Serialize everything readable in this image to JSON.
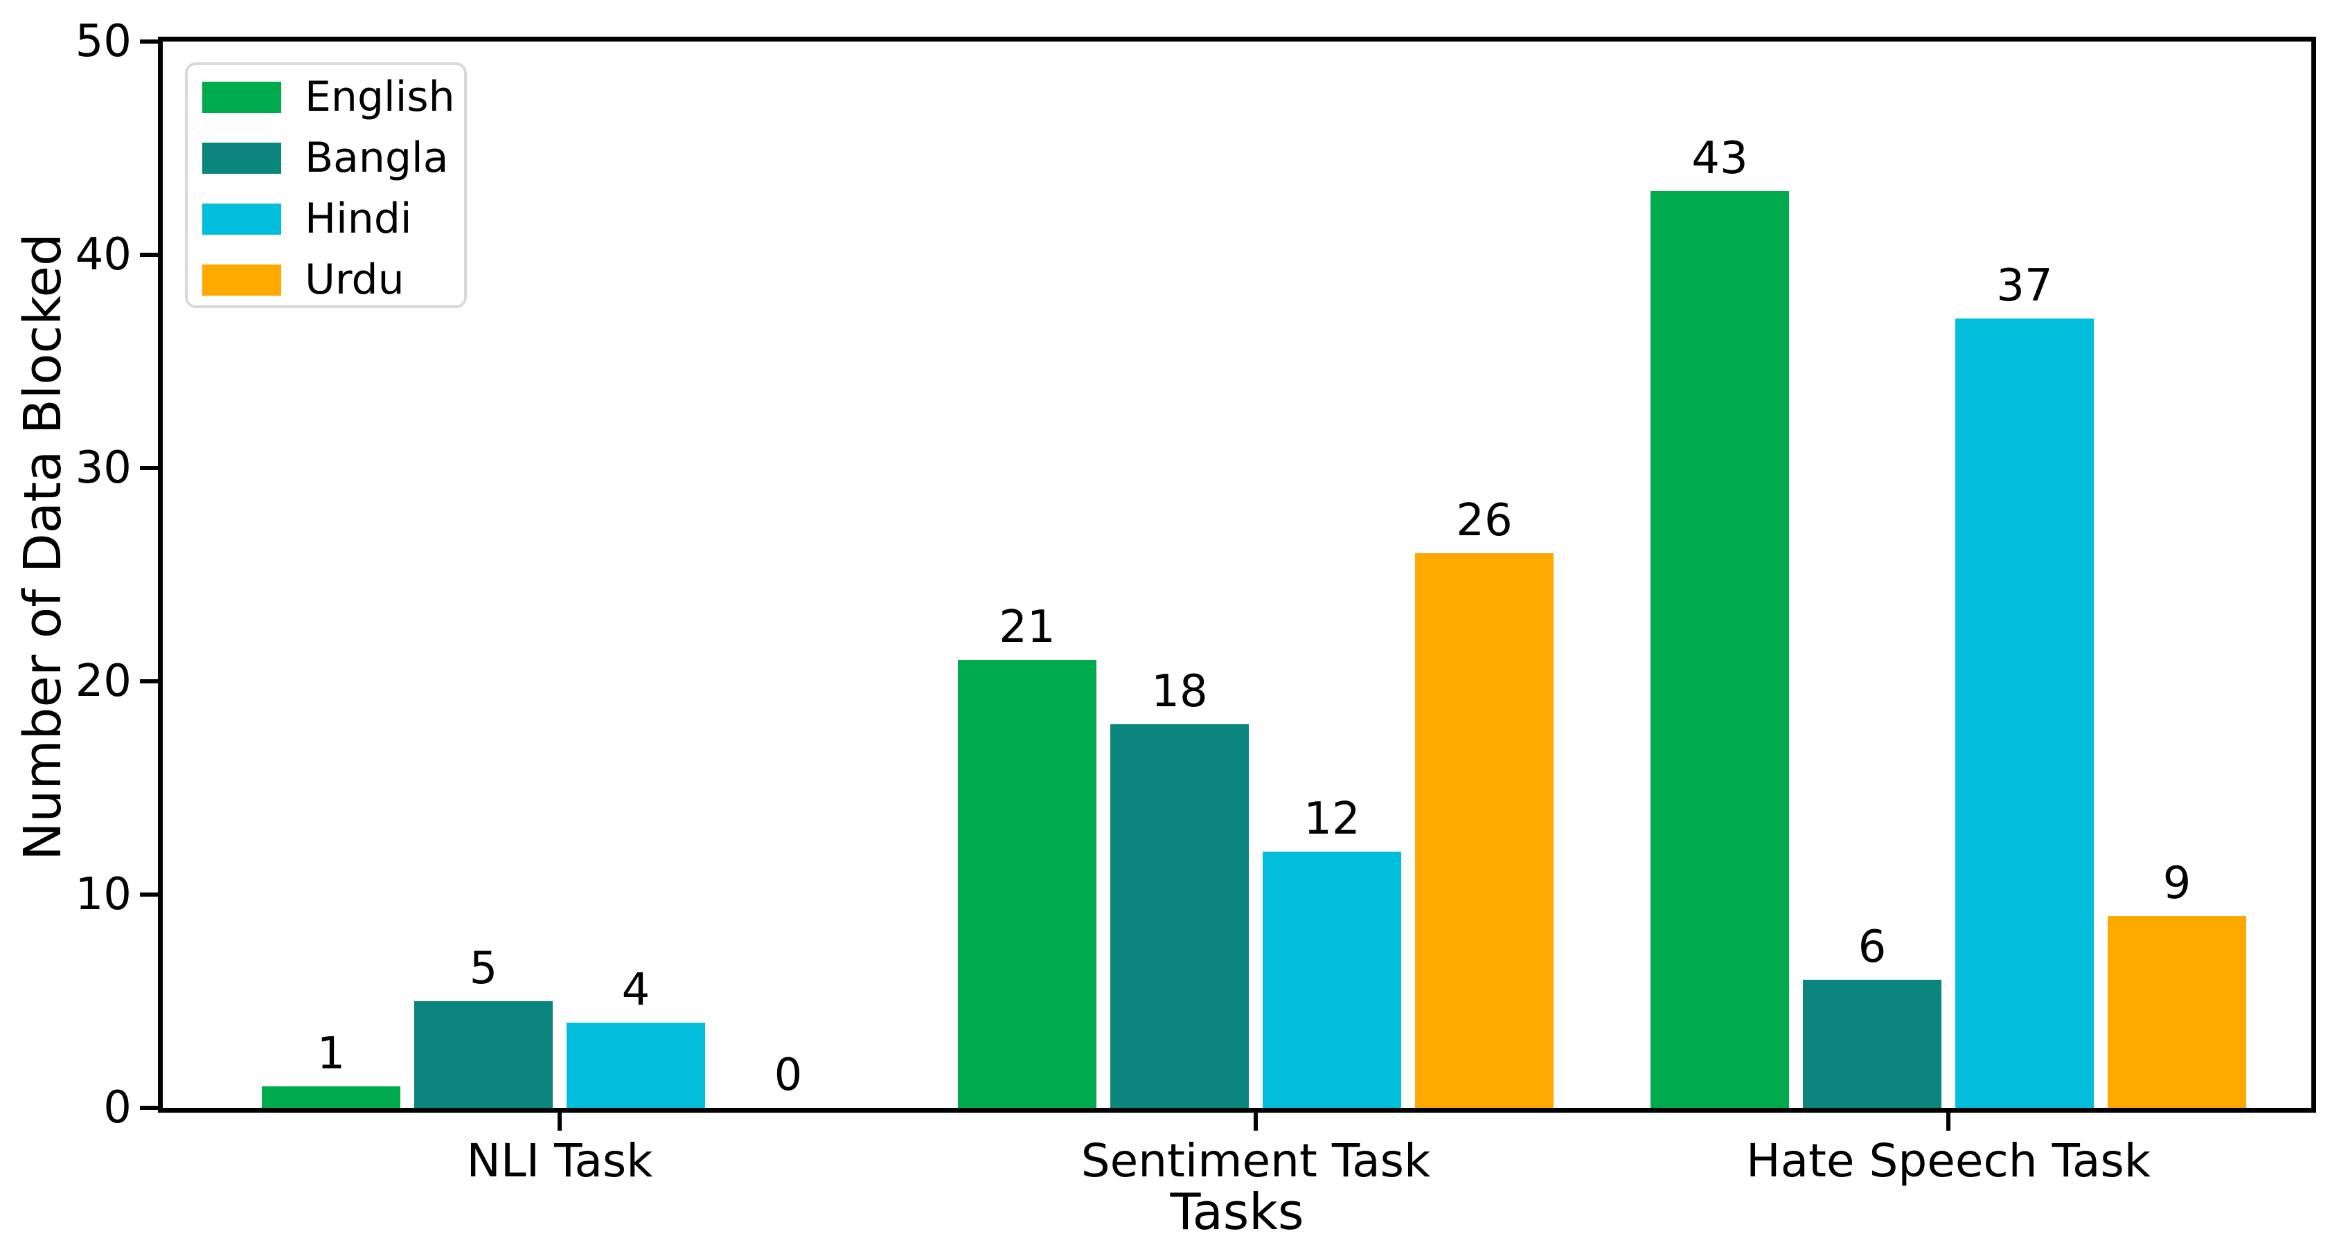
{
  "chart_data": {
    "type": "bar",
    "title": "",
    "xlabel": "Tasks",
    "ylabel": "Number of Data Blocked",
    "categories": [
      "NLI Task",
      "Sentiment Task",
      "Hate Speech Task"
    ],
    "series": [
      {
        "name": "English",
        "color": "#00AB4E",
        "values": [
          1,
          21,
          43
        ]
      },
      {
        "name": "Bangla",
        "color": "#0B867C",
        "values": [
          5,
          18,
          6
        ]
      },
      {
        "name": "Hindi",
        "color": "#00BEDC",
        "values": [
          4,
          12,
          37
        ]
      },
      {
        "name": "Urdu",
        "color": "#FFA800",
        "values": [
          0,
          26,
          9
        ]
      }
    ],
    "ylim": [
      0,
      50
    ],
    "yticks": [
      0,
      10,
      20,
      30,
      40,
      50
    ],
    "bar_value_labels": true,
    "grid": false,
    "legend_position": "upper left",
    "frame": "full-box",
    "text_color": "#000000",
    "axis_color": "#000000",
    "legend_border_color": "#d9d9d9",
    "background_color": "#ffffff"
  }
}
